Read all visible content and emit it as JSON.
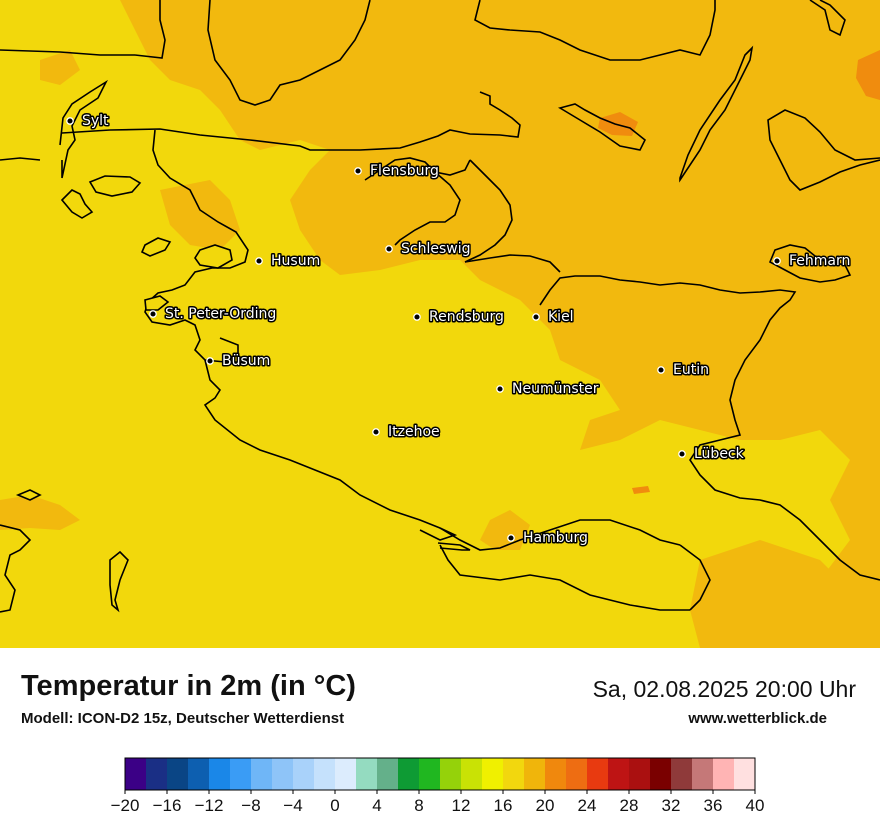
{
  "title": "Temperatur in 2m (in °C)",
  "subtitle": "Modell: ICON-D2 15z, Deutscher Wetterdienst",
  "datetime": "Sa, 02.08.2025 20:00 Uhr",
  "website": "www.wetterblick.de",
  "cities": [
    {
      "name": "Sylt"
    },
    {
      "name": "Flensburg"
    },
    {
      "name": "Schleswig"
    },
    {
      "name": "Husum"
    },
    {
      "name": "Fehmarn"
    },
    {
      "name": "St. Peter-Ording"
    },
    {
      "name": "Rendsburg"
    },
    {
      "name": "Kiel"
    },
    {
      "name": "Büsum"
    },
    {
      "name": "Eutin"
    },
    {
      "name": "Neumünster"
    },
    {
      "name": "Itzehoe"
    },
    {
      "name": "Lübeck"
    },
    {
      "name": "Hamburg"
    }
  ],
  "legend": {
    "tick_labels": [
      "−20",
      "−16",
      "−12",
      "−8",
      "−4",
      "0",
      "4",
      "8",
      "12",
      "16",
      "20",
      "24",
      "28",
      "32",
      "36",
      "40"
    ],
    "min": -20,
    "max": 40,
    "step": 2,
    "colors": [
      "#3b0086",
      "#1a2f85",
      "#0a4585",
      "#0d5fb0",
      "#1a87e8",
      "#3a9cf5",
      "#6fb6f7",
      "#8ec4f8",
      "#a9d2fa",
      "#c5e1fc",
      "#dcecfd",
      "#94dbc0",
      "#64b08a",
      "#0e9b34",
      "#20b720",
      "#95d20a",
      "#c9e205",
      "#f0f000",
      "#f2d70e",
      "#f0b50b",
      "#f0880d",
      "#ee6d12",
      "#e83a10",
      "#be1414",
      "#aa1010",
      "#7a0000",
      "#8f3a3a",
      "#c57878",
      "#ffb4b4",
      "#ffe0e0"
    ]
  },
  "map_colors": {
    "t_16_18": "#f2d80c",
    "t_18_20": "#f2b90e",
    "t_20_22": "#f08c0e",
    "coastline": "#000000"
  }
}
